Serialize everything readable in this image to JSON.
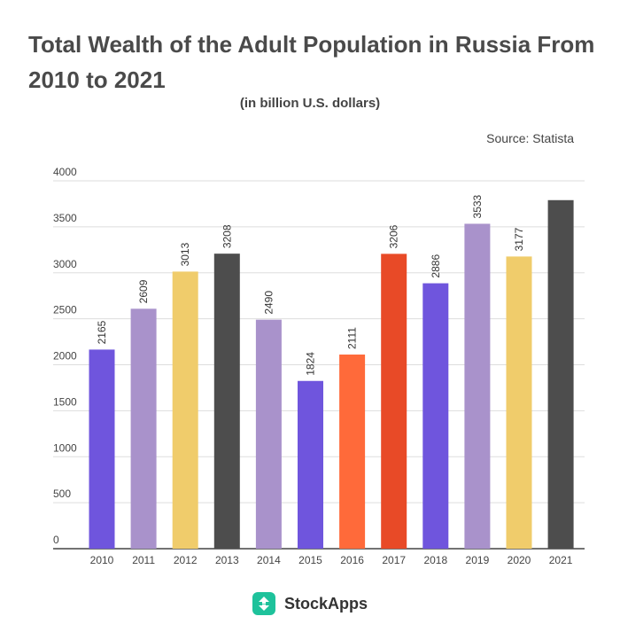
{
  "header": {
    "title": "Total Wealth of the Adult Population in Russia From 2010 to 2021",
    "subtitle": "(in billion U.S. dollars)",
    "source": "Source: Statista"
  },
  "footer": {
    "brand": "StockApps"
  },
  "chart_data": {
    "type": "bar",
    "title": "Total Wealth of the Adult Population in Russia From 2010 to 2021",
    "subtitle": "(in billion U.S. dollars)",
    "categories": [
      "2010",
      "2011",
      "2012",
      "2013",
      "2014",
      "2015",
      "2016",
      "2017",
      "2018",
      "2019",
      "2020",
      "2021"
    ],
    "values": [
      2165,
      2609,
      3013,
      3208,
      2490,
      1824,
      2111,
      3206,
      2886,
      3533,
      3177,
      3790
    ],
    "labels": [
      "2165",
      "2609",
      "3013",
      "3208",
      "2490",
      "1824",
      "2111",
      "3206",
      "2886",
      "3533",
      "3177",
      ""
    ],
    "colors": [
      "#6f55dd",
      "#a992cb",
      "#f0cc6b",
      "#4d4d4d",
      "#a992cb",
      "#6f55dd",
      "#ff6a3a",
      "#e84a27",
      "#6f55dd",
      "#a992cb",
      "#f0cc6b",
      "#4d4d4d"
    ],
    "yticks": [
      0,
      500,
      1000,
      1500,
      2000,
      2500,
      3000,
      3500,
      4000
    ],
    "ylim": [
      0,
      4000
    ],
    "grid": true,
    "xlabel": "",
    "ylabel": ""
  }
}
